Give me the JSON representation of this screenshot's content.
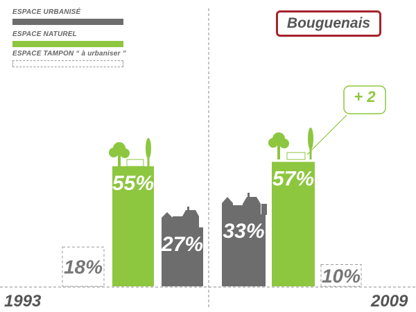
{
  "legend": {
    "items": [
      {
        "label": "ESPACE URBANISÉ",
        "color": "#6d6d6d"
      },
      {
        "label": "ESPACE NATUREL",
        "color": "#8dc63f"
      },
      {
        "label": "ESPACE TAMPON “ à urbaniser ”",
        "color": "#ffffff"
      }
    ]
  },
  "title": "Bouguenais",
  "colors": {
    "urbanise": "#6d6d6d",
    "naturel": "#8dc63f",
    "tampon_border": "#999999",
    "title_border": "#a5232d",
    "text": "#555555"
  },
  "change_callout": "+ 2",
  "chart_data": {
    "type": "bar",
    "categories": [
      "1993",
      "2009"
    ],
    "series": [
      {
        "name": "ESPACE NATUREL",
        "values": [
          55,
          57
        ]
      },
      {
        "name": "ESPACE URBANISÉ",
        "values": [
          27,
          33
        ]
      },
      {
        "name": "ESPACE TAMPON “ à urbaniser ”",
        "values": [
          18,
          10
        ]
      }
    ],
    "data_labels": {
      "1993": {
        "naturel": "55%",
        "urbanise": "27%",
        "tampon": "18%"
      },
      "2009": {
        "naturel": "57%",
        "urbanise": "33%",
        "tampon": "10%"
      }
    },
    "xlabel": "",
    "ylabel": "",
    "ylim": [
      0,
      60
    ],
    "grid": false,
    "legend_position": "top-left"
  }
}
